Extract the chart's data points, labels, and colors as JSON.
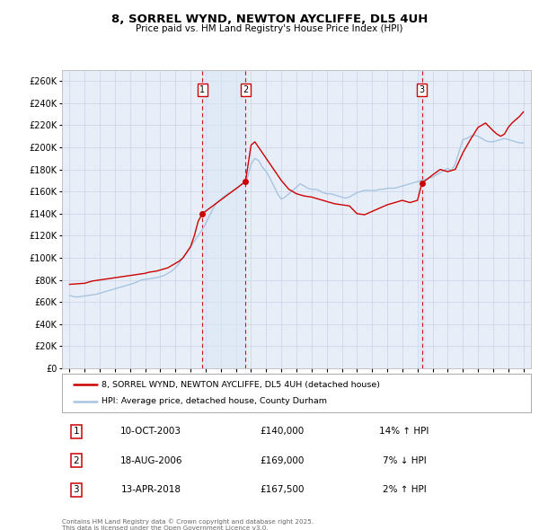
{
  "title": "8, SORREL WYND, NEWTON AYCLIFFE, DL5 4UH",
  "subtitle": "Price paid vs. HM Land Registry's House Price Index (HPI)",
  "background_color": "#ffffff",
  "plot_background": "#e8eef8",
  "grid_color": "#c8d4e8",
  "hpi_color": "#a8c4e0",
  "price_color": "#cc0000",
  "shade_color": "#dce8f5",
  "legend_label_price": "8, SORREL WYND, NEWTON AYCLIFFE, DL5 4UH (detached house)",
  "legend_label_hpi": "HPI: Average price, detached house, County Durham",
  "transactions": [
    {
      "num": 1,
      "date": "10-OCT-2003",
      "x": 2003.78,
      "price": 140000,
      "pct": "14%",
      "direction": "↑"
    },
    {
      "num": 2,
      "date": "18-AUG-2006",
      "x": 2006.63,
      "price": 169000,
      "pct": "7%",
      "direction": "↓"
    },
    {
      "num": 3,
      "date": "13-APR-2018",
      "x": 2018.29,
      "price": 167500,
      "pct": "2%",
      "direction": "↑"
    }
  ],
  "ylim": [
    0,
    270000
  ],
  "xlim": [
    1994.5,
    2025.5
  ],
  "yticks": [
    0,
    20000,
    40000,
    60000,
    80000,
    100000,
    120000,
    140000,
    160000,
    180000,
    200000,
    220000,
    240000,
    260000
  ],
  "xticks": [
    1995,
    1996,
    1997,
    1998,
    1999,
    2000,
    2001,
    2002,
    2003,
    2004,
    2005,
    2006,
    2007,
    2008,
    2009,
    2010,
    2011,
    2012,
    2013,
    2014,
    2015,
    2016,
    2017,
    2018,
    2019,
    2020,
    2021,
    2022,
    2023,
    2024,
    2025
  ],
  "footer": "Contains HM Land Registry data © Crown copyright and database right 2025.\nThis data is licensed under the Open Government Licence v3.0.",
  "hpi_data": {
    "x": [
      1995.0,
      1995.25,
      1995.5,
      1995.75,
      1996.0,
      1996.25,
      1996.5,
      1996.75,
      1997.0,
      1997.25,
      1997.5,
      1997.75,
      1998.0,
      1998.25,
      1998.5,
      1998.75,
      1999.0,
      1999.25,
      1999.5,
      1999.75,
      2000.0,
      2000.25,
      2000.5,
      2000.75,
      2001.0,
      2001.25,
      2001.5,
      2001.75,
      2002.0,
      2002.25,
      2002.5,
      2002.75,
      2003.0,
      2003.25,
      2003.5,
      2003.75,
      2004.0,
      2004.25,
      2004.5,
      2004.75,
      2005.0,
      2005.25,
      2005.5,
      2005.75,
      2006.0,
      2006.25,
      2006.5,
      2006.75,
      2007.0,
      2007.25,
      2007.5,
      2007.75,
      2008.0,
      2008.25,
      2008.5,
      2008.75,
      2009.0,
      2009.25,
      2009.5,
      2009.75,
      2010.0,
      2010.25,
      2010.5,
      2010.75,
      2011.0,
      2011.25,
      2011.5,
      2011.75,
      2012.0,
      2012.25,
      2012.5,
      2012.75,
      2013.0,
      2013.25,
      2013.5,
      2013.75,
      2014.0,
      2014.25,
      2014.5,
      2014.75,
      2015.0,
      2015.25,
      2015.5,
      2015.75,
      2016.0,
      2016.25,
      2016.5,
      2016.75,
      2017.0,
      2017.25,
      2017.5,
      2017.75,
      2018.0,
      2018.25,
      2018.5,
      2018.75,
      2019.0,
      2019.25,
      2019.5,
      2019.75,
      2020.0,
      2020.25,
      2020.5,
      2020.75,
      2021.0,
      2021.25,
      2021.5,
      2021.75,
      2022.0,
      2022.25,
      2022.5,
      2022.75,
      2023.0,
      2023.25,
      2023.5,
      2023.75,
      2024.0,
      2024.25,
      2024.5,
      2024.75,
      2025.0
    ],
    "y": [
      66000,
      65000,
      64500,
      65000,
      65500,
      66000,
      66500,
      67000,
      68000,
      69000,
      70000,
      71000,
      72000,
      73000,
      74000,
      75000,
      76000,
      77000,
      78500,
      80000,
      80500,
      81000,
      81500,
      82000,
      83000,
      84000,
      86000,
      88000,
      91000,
      95000,
      100000,
      105000,
      110000,
      115000,
      120000,
      125000,
      131000,
      138000,
      145000,
      150000,
      153000,
      156000,
      158000,
      160000,
      162000,
      165000,
      168000,
      172000,
      185000,
      190000,
      188000,
      182000,
      178000,
      172000,
      165000,
      158000,
      153000,
      155000,
      158000,
      161000,
      164000,
      167000,
      165000,
      163000,
      162000,
      162000,
      161000,
      159000,
      158000,
      158000,
      157000,
      156000,
      155000,
      154000,
      155000,
      157000,
      159000,
      160000,
      161000,
      161000,
      161000,
      161000,
      162000,
      162000,
      163000,
      163000,
      163000,
      164000,
      165000,
      166000,
      167000,
      168000,
      169000,
      170000,
      171000,
      172000,
      173000,
      175000,
      177000,
      179000,
      181000,
      179000,
      185000,
      196000,
      207000,
      208000,
      210000,
      211000,
      210000,
      208000,
      206000,
      205000,
      205000,
      206000,
      207000,
      208000,
      207000,
      206000,
      205000,
      204000,
      204000
    ]
  },
  "price_data": {
    "x": [
      1995.0,
      1995.5,
      1996.0,
      1996.25,
      1996.5,
      1997.0,
      1997.5,
      1998.0,
      1998.5,
      1999.0,
      1999.5,
      2000.0,
      2000.25,
      2000.75,
      2001.0,
      2001.5,
      2001.75,
      2002.0,
      2002.25,
      2002.5,
      2002.75,
      2003.0,
      2003.25,
      2003.5,
      2003.78,
      2006.63,
      2007.0,
      2007.25,
      2007.5,
      2008.0,
      2008.5,
      2009.0,
      2009.5,
      2010.0,
      2010.5,
      2011.0,
      2011.5,
      2012.0,
      2012.5,
      2013.0,
      2013.5,
      2014.0,
      2014.5,
      2015.0,
      2015.5,
      2016.0,
      2016.5,
      2017.0,
      2017.5,
      2018.0,
      2018.29,
      2019.0,
      2019.5,
      2020.0,
      2020.5,
      2021.0,
      2021.5,
      2022.0,
      2022.25,
      2022.5,
      2023.0,
      2023.25,
      2023.5,
      2023.75,
      2024.0,
      2024.25,
      2024.5,
      2024.75,
      2025.0
    ],
    "y": [
      76000,
      76500,
      77000,
      78000,
      79000,
      80000,
      81000,
      82000,
      83000,
      84000,
      85000,
      86000,
      87000,
      88000,
      89000,
      91000,
      93000,
      95000,
      97000,
      100000,
      105000,
      110000,
      120000,
      133000,
      140000,
      169000,
      202000,
      205000,
      200000,
      190000,
      180000,
      170000,
      162000,
      158000,
      156000,
      155000,
      153000,
      151000,
      149000,
      148000,
      147000,
      140000,
      139000,
      142000,
      145000,
      148000,
      150000,
      152000,
      150000,
      152000,
      167500,
      175000,
      180000,
      178000,
      180000,
      195000,
      207000,
      218000,
      220000,
      222000,
      215000,
      212000,
      210000,
      212000,
      218000,
      222000,
      225000,
      228000,
      232000
    ]
  }
}
